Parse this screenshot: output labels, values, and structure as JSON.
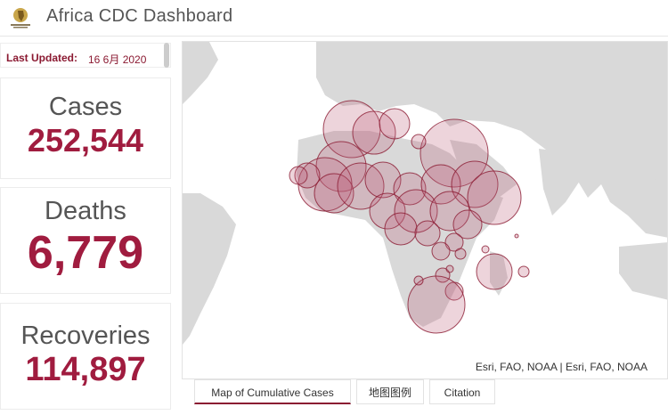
{
  "header": {
    "title": "Africa CDC Dashboard"
  },
  "last_updated": {
    "label": "Last Updated:",
    "value": "16 6月 2020"
  },
  "stats": {
    "cases": {
      "label": "Cases",
      "value": "252,544"
    },
    "deaths": {
      "label": "Deaths",
      "value": "6,779"
    },
    "recoveries": {
      "label": "Recoveries",
      "value": "114,897"
    }
  },
  "map": {
    "attribution": "Esri, FAO, NOAA | Esri, FAO, NOAA",
    "colors": {
      "land": "#d9d9d9",
      "water": "#ffffff",
      "bubble_fill": "#c0647c",
      "bubble_stroke": "#8b1a32"
    }
  },
  "tabs": [
    {
      "label": "Map of Cumulative Cases",
      "active": true
    },
    {
      "label": "地图图例",
      "active": false
    },
    {
      "label": "Citation",
      "active": false
    }
  ]
}
